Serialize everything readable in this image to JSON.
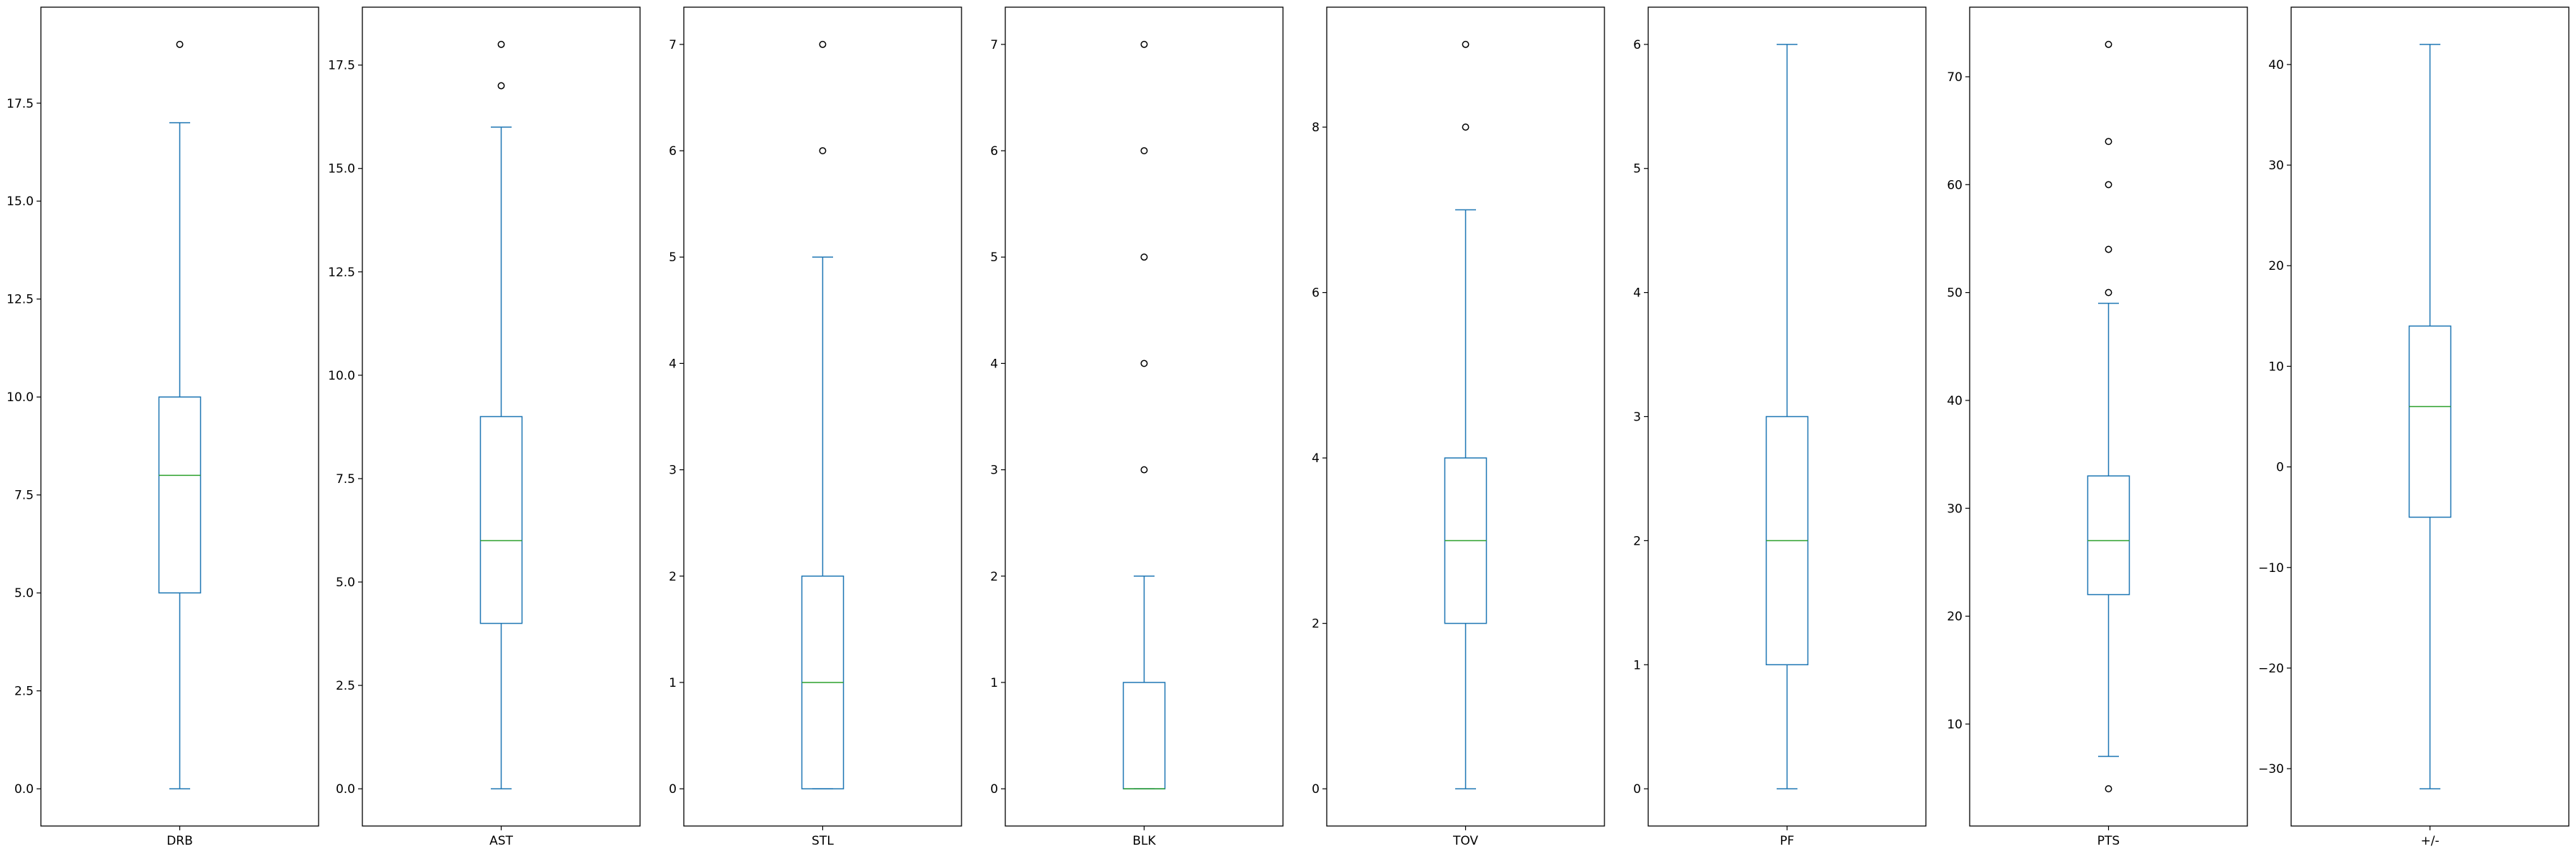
{
  "chart_data": [
    {
      "type": "box",
      "xlabel": "DRB",
      "ylim": [
        -0.95,
        19.95
      ],
      "yticks": [
        0.0,
        2.5,
        5.0,
        7.5,
        10.0,
        12.5,
        15.0,
        17.5
      ],
      "ytick_labels": [
        "0.0",
        "2.5",
        "5.0",
        "7.5",
        "10.0",
        "12.5",
        "15.0",
        "17.5"
      ],
      "whisker_low": 0,
      "q1": 5,
      "median": 8,
      "q3": 10,
      "whisker_high": 17,
      "outliers": [
        19
      ]
    },
    {
      "type": "box",
      "xlabel": "AST",
      "ylim": [
        -0.9,
        18.9
      ],
      "yticks": [
        0.0,
        2.5,
        5.0,
        7.5,
        10.0,
        12.5,
        15.0,
        17.5
      ],
      "ytick_labels": [
        "0.0",
        "2.5",
        "5.0",
        "7.5",
        "10.0",
        "12.5",
        "15.0",
        "17.5"
      ],
      "whisker_low": 0,
      "q1": 4,
      "median": 6,
      "q3": 9,
      "whisker_high": 16,
      "outliers": [
        17,
        18
      ]
    },
    {
      "type": "box",
      "xlabel": "STL",
      "ylim": [
        -0.35,
        7.35
      ],
      "yticks": [
        0,
        1,
        2,
        3,
        4,
        5,
        6,
        7
      ],
      "ytick_labels": [
        "0",
        "1",
        "2",
        "3",
        "4",
        "5",
        "6",
        "7"
      ],
      "whisker_low": 0,
      "q1": 0,
      "median": 1,
      "q3": 2,
      "whisker_high": 5,
      "outliers": [
        6,
        7
      ]
    },
    {
      "type": "box",
      "xlabel": "BLK",
      "ylim": [
        -0.35,
        7.35
      ],
      "yticks": [
        0,
        1,
        2,
        3,
        4,
        5,
        6,
        7
      ],
      "ytick_labels": [
        "0",
        "1",
        "2",
        "3",
        "4",
        "5",
        "6",
        "7"
      ],
      "whisker_low": 0,
      "q1": 0,
      "median": 0,
      "q3": 1,
      "whisker_high": 2,
      "outliers": [
        3,
        4,
        5,
        6,
        7
      ]
    },
    {
      "type": "box",
      "xlabel": "TOV",
      "ylim": [
        -0.45,
        9.45
      ],
      "yticks": [
        0,
        2,
        4,
        6,
        8
      ],
      "ytick_labels": [
        "0",
        "2",
        "4",
        "6",
        "8"
      ],
      "whisker_low": 0,
      "q1": 2,
      "median": 3,
      "q3": 4,
      "whisker_high": 7,
      "outliers": [
        8,
        9
      ]
    },
    {
      "type": "box",
      "xlabel": "PF",
      "ylim": [
        -0.3,
        6.3
      ],
      "yticks": [
        0,
        1,
        2,
        3,
        4,
        5,
        6
      ],
      "ytick_labels": [
        "0",
        "1",
        "2",
        "3",
        "4",
        "5",
        "6"
      ],
      "whisker_low": 0,
      "q1": 1,
      "median": 2,
      "q3": 3,
      "whisker_high": 6,
      "outliers": []
    },
    {
      "type": "box",
      "xlabel": "PTS",
      "ylim": [
        0.55,
        76.45
      ],
      "yticks": [
        10,
        20,
        30,
        40,
        50,
        60,
        70
      ],
      "ytick_labels": [
        "10",
        "20",
        "30",
        "40",
        "50",
        "60",
        "70"
      ],
      "whisker_low": 7,
      "q1": 22,
      "median": 27,
      "q3": 33,
      "whisker_high": 49,
      "outliers": [
        4,
        50,
        54,
        60,
        64,
        73
      ]
    },
    {
      "type": "box",
      "xlabel": "+/-",
      "ylim": [
        -35.7,
        45.7
      ],
      "yticks": [
        -30,
        -20,
        -10,
        0,
        10,
        20,
        30,
        40
      ],
      "ytick_labels": [
        "−30",
        "−20",
        "−10",
        "0",
        "10",
        "20",
        "30",
        "40"
      ],
      "whisker_low": -32,
      "q1": -5,
      "median": 6,
      "q3": 14,
      "whisker_high": 42,
      "outliers": []
    }
  ],
  "colors": {
    "box": "#1f77b4",
    "median": "#2ca02c",
    "axes": "#000000",
    "flier": "#000000"
  }
}
